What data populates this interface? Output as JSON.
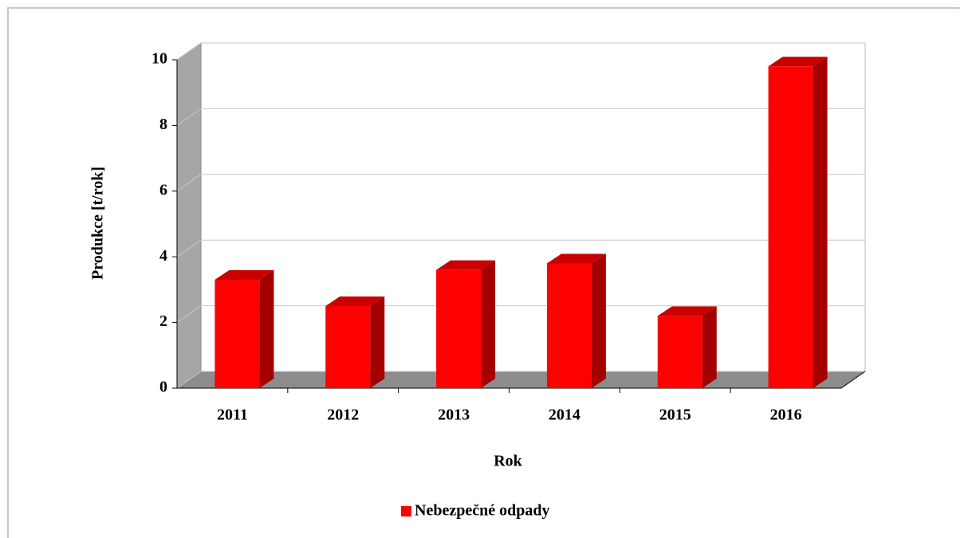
{
  "chart_data": {
    "type": "bar3d",
    "categories": [
      "2011",
      "2012",
      "2013",
      "2014",
      "2015",
      "2016"
    ],
    "series": [
      {
        "name": "Nebezpečné odpady",
        "color": "#ff0000",
        "values": [
          3.3,
          2.5,
          3.6,
          3.8,
          2.2,
          9.8
        ]
      }
    ],
    "xlabel": "Rok",
    "ylabel": "Produkce [t/rok]",
    "ylim": [
      0,
      10
    ],
    "yticks": [
      0,
      2,
      4,
      6,
      8,
      10
    ],
    "grid": true,
    "legend": "bottom"
  }
}
